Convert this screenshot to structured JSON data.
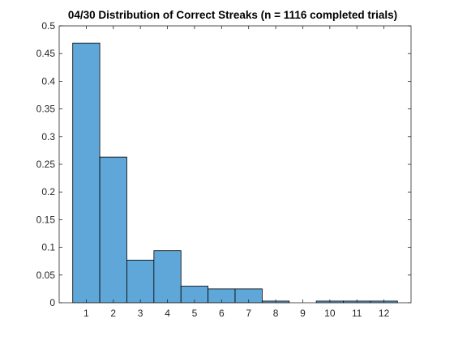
{
  "chart_data": {
    "type": "bar",
    "title": "04/30 Distribution of Correct Streaks (n = 1116 completed trials)",
    "xlabel": "",
    "ylabel": "",
    "categories": [
      "1",
      "2",
      "3",
      "4",
      "5",
      "6",
      "7",
      "8",
      "9",
      "10",
      "11",
      "12"
    ],
    "values": [
      0.469,
      0.263,
      0.077,
      0.094,
      0.03,
      0.025,
      0.025,
      0.003,
      0,
      0.003,
      0.003,
      0.003
    ],
    "xlim": [
      0,
      13
    ],
    "ylim": [
      0,
      0.5
    ],
    "yticks": [
      "0",
      "0.05",
      "0.1",
      "0.15",
      "0.2",
      "0.25",
      "0.3",
      "0.35",
      "0.4",
      "0.45",
      "0.5"
    ],
    "grid": false,
    "legend": "none",
    "colors": {
      "bar_fill": "#5fa7d9",
      "bar_edge": "#000000",
      "axis": "#262626"
    }
  }
}
